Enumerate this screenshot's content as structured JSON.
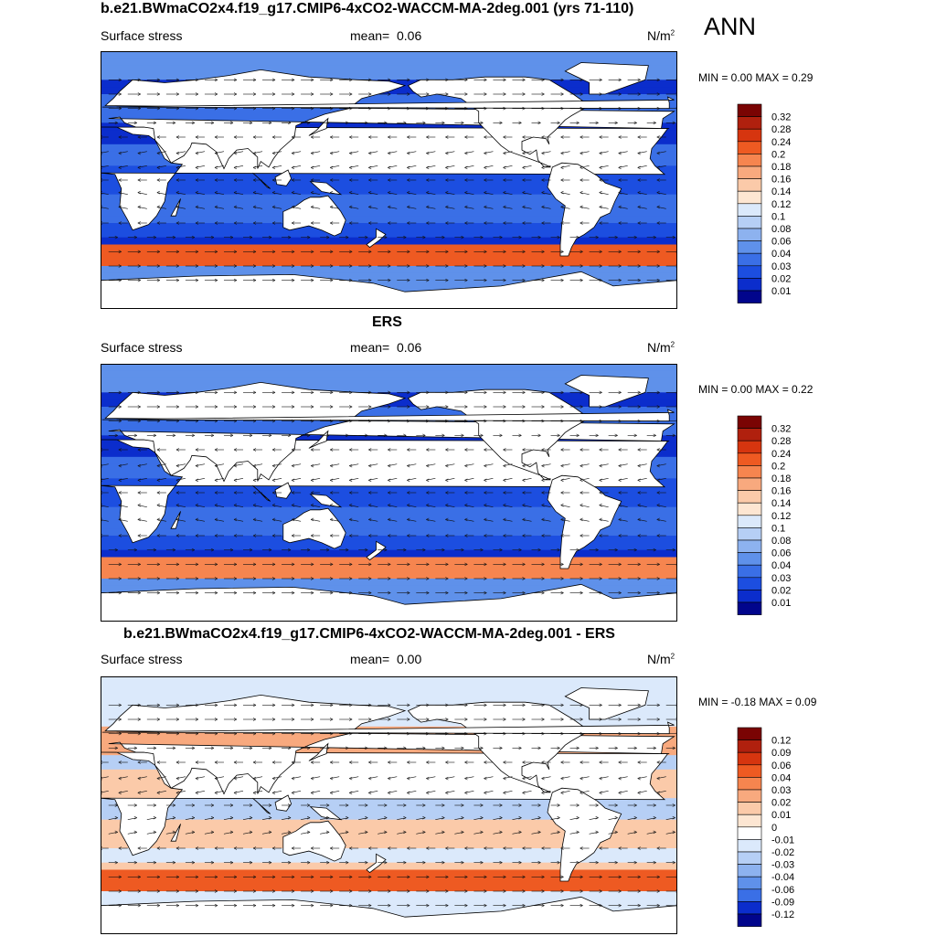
{
  "season": "ANN",
  "panels": [
    {
      "title": "b.e21.BWmaCO2x4.f19_g17.CMIP6-4xCO2-WACCM-MA-2deg.001 (yrs 71-110)",
      "variable": "Surface stress",
      "mean_label": "mean=",
      "mean_value": "0.06",
      "units": "N/m",
      "units_exp": "2",
      "minmax": "MIN =   0.00 MAX =   0.29",
      "levels": [
        "0.32",
        "0.28",
        "0.24",
        "0.2",
        "0.18",
        "0.16",
        "0.14",
        "0.12",
        "0.1",
        "0.08",
        "0.06",
        "0.04",
        "0.03",
        "0.02",
        "0.01"
      ],
      "colors": [
        "#7a0403",
        "#b0200e",
        "#d6350f",
        "#ee5a22",
        "#f6854f",
        "#f8a97e",
        "#fbcaa9",
        "#fde6d2",
        "#dbe9fb",
        "#b6cff5",
        "#8db2ef",
        "#5f91ea",
        "#3a6fe6",
        "#1c4ee0",
        "#0b2dcc",
        "#01058c"
      ]
    },
    {
      "title": "ERS",
      "variable": "Surface stress",
      "mean_label": "mean=",
      "mean_value": "0.06",
      "units": "N/m",
      "units_exp": "2",
      "minmax": "MIN =   0.00 MAX =   0.22",
      "levels": [
        "0.32",
        "0.28",
        "0.24",
        "0.2",
        "0.18",
        "0.16",
        "0.14",
        "0.12",
        "0.1",
        "0.08",
        "0.06",
        "0.04",
        "0.03",
        "0.02",
        "0.01"
      ],
      "colors": [
        "#7a0403",
        "#b0200e",
        "#d6350f",
        "#ee5a22",
        "#f6854f",
        "#f8a97e",
        "#fbcaa9",
        "#fde6d2",
        "#dbe9fb",
        "#b6cff5",
        "#8db2ef",
        "#5f91ea",
        "#3a6fe6",
        "#1c4ee0",
        "#0b2dcc",
        "#01058c"
      ]
    },
    {
      "title": "b.e21.BWmaCO2x4.f19_g17.CMIP6-4xCO2-WACCM-MA-2deg.001 - ERS",
      "variable": "Surface stress",
      "mean_label": "mean=",
      "mean_value": "0.00",
      "units": "N/m",
      "units_exp": "2",
      "minmax": "MIN =  -0.18 MAX =   0.09",
      "levels": [
        "0.12",
        "0.09",
        "0.06",
        "0.04",
        "0.03",
        "0.02",
        "0.01",
        "0",
        "-0.01",
        "-0.02",
        "-0.03",
        "-0.04",
        "-0.06",
        "-0.09",
        "-0.12"
      ],
      "colors": [
        "#7a0403",
        "#b0200e",
        "#d6350f",
        "#ee5a22",
        "#f6854f",
        "#f8a97e",
        "#fbcaa9",
        "#fde6d2",
        "#ffffff",
        "#dbe9fb",
        "#b6cff5",
        "#8db2ef",
        "#5f91ea",
        "#3a6fe6",
        "#0b2dcc",
        "#01058c"
      ]
    }
  ]
}
